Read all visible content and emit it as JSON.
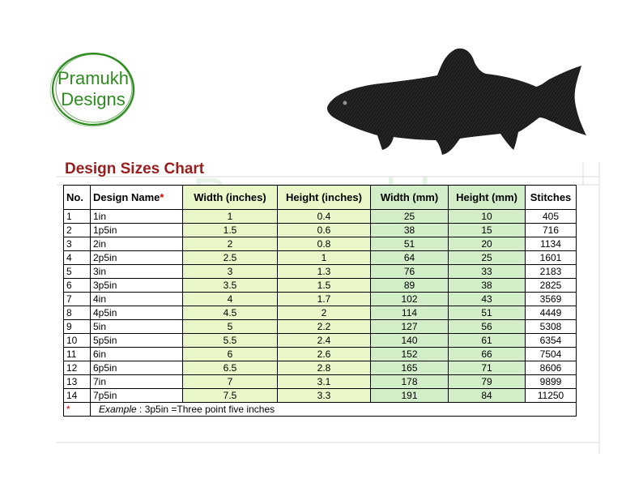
{
  "logo": {
    "line1": "Pramukh",
    "line2": "Designs"
  },
  "watermark": {
    "line1": "Pramukh",
    "line2": "Designs"
  },
  "title": "Design Sizes Chart",
  "colors": {
    "title": "#9b1c1c",
    "logo": "#2e8b1f",
    "inch_cols": "#e9f7c8",
    "mm_cols": "#d1eec8",
    "required_mark": "#e00000"
  },
  "table": {
    "headers": {
      "no": "No.",
      "name": "Design Name",
      "name_mark": "*",
      "width_in": "Width (inches)",
      "height_in": "Height (inches)",
      "width_mm": "Width (mm)",
      "height_mm": "Height (mm)",
      "stitches": "Stitches"
    },
    "rows": [
      [
        "1",
        "1in",
        "1",
        "0.4",
        "25",
        "10",
        "405"
      ],
      [
        "2",
        "1p5in",
        "1.5",
        "0.6",
        "38",
        "15",
        "716"
      ],
      [
        "3",
        "2in",
        "2",
        "0.8",
        "51",
        "20",
        "1134"
      ],
      [
        "4",
        "2p5in",
        "2.5",
        "1",
        "64",
        "25",
        "1601"
      ],
      [
        "5",
        "3in",
        "3",
        "1.3",
        "76",
        "33",
        "2183"
      ],
      [
        "6",
        "3p5in",
        "3.5",
        "1.5",
        "89",
        "38",
        "2825"
      ],
      [
        "7",
        "4in",
        "4",
        "1.7",
        "102",
        "43",
        "3569"
      ],
      [
        "8",
        "4p5in",
        "4.5",
        "2",
        "114",
        "51",
        "4449"
      ],
      [
        "9",
        "5in",
        "5",
        "2.2",
        "127",
        "56",
        "5308"
      ],
      [
        "10",
        "5p5in",
        "5.5",
        "2.4",
        "140",
        "61",
        "6354"
      ],
      [
        "11",
        "6in",
        "6",
        "2.6",
        "152",
        "66",
        "7504"
      ],
      [
        "12",
        "6p5in",
        "6.5",
        "2.8",
        "165",
        "71",
        "8606"
      ],
      [
        "13",
        "7in",
        "7",
        "3.1",
        "178",
        "79",
        "9899"
      ],
      [
        "14",
        "7p5in",
        "7.5",
        "3.3",
        "191",
        "84",
        "11250"
      ]
    ],
    "note": {
      "mark": "*",
      "example_label": "Example",
      "text": " : 3p5in =Three point five inches"
    }
  },
  "icons": {
    "fish": "trout-silhouette-icon",
    "logo": "brush-circle-logo"
  }
}
